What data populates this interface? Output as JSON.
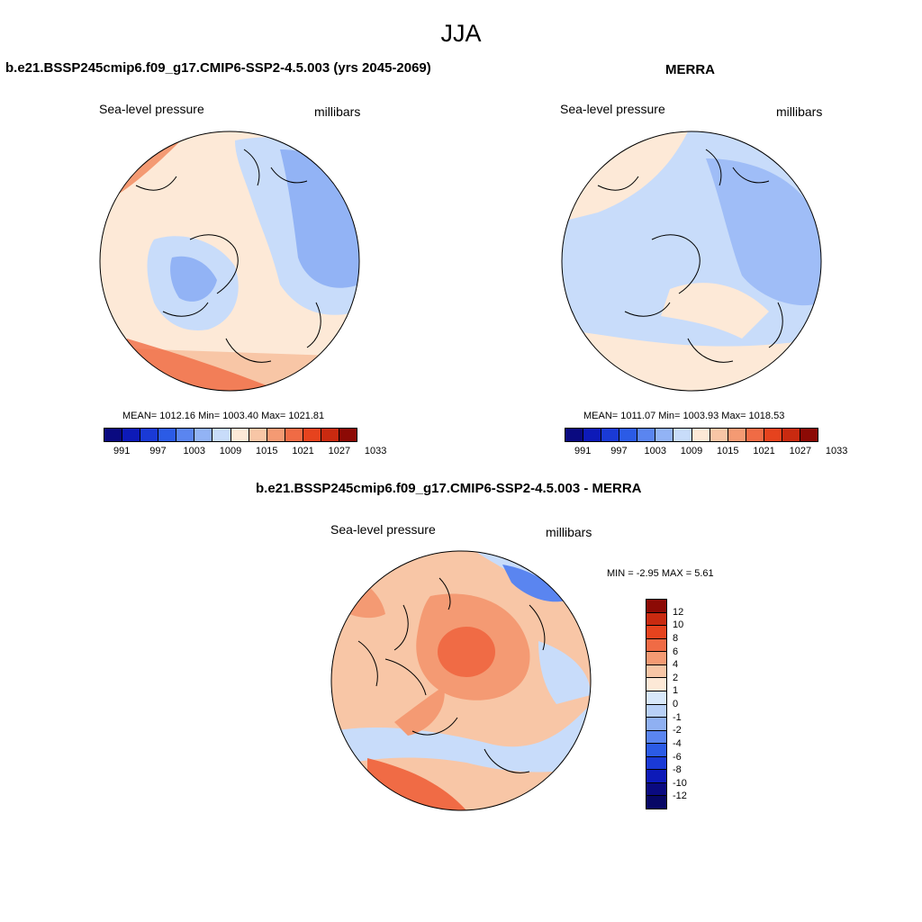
{
  "title": "JJA",
  "panels": {
    "model": {
      "title": "b.e21.BSSP245cmip6.f09_g17.CMIP6-SSP2-4.5.003 (yrs 2045-2069)",
      "variable": "Sea-level pressure",
      "units": "millibars",
      "stats": "MEAN= 1012.16   Min= 1003.40   Max= 1021.81"
    },
    "obs": {
      "title": "MERRA",
      "variable": "Sea-level pressure",
      "units": "millibars",
      "stats": "MEAN= 1011.07   Min= 1003.93   Max= 1018.53"
    },
    "diff": {
      "title": "b.e21.BSSP245cmip6.f09_g17.CMIP6-SSP2-4.5.003 - MERRA",
      "variable": "Sea-level pressure",
      "units": "millibars",
      "stats": "MIN =  -2.95 MAX =   5.61"
    }
  },
  "colorbar_abs": {
    "colors": [
      "#0a0a80",
      "#0d1ab8",
      "#1a3ad6",
      "#2b5be6",
      "#5a85f0",
      "#92b3f5",
      "#c8dcfa",
      "#fde9d7",
      "#f8c6a6",
      "#f49a73",
      "#f06b45",
      "#e6431e",
      "#c92a10",
      "#8c0a05"
    ],
    "labels": [
      "991",
      "997",
      "1003",
      "1009",
      "1015",
      "1021",
      "1027",
      "1033"
    ]
  },
  "colorbar_diff": {
    "colors": [
      "#8c0a05",
      "#c92a10",
      "#e6431e",
      "#f06b45",
      "#f49a73",
      "#f8c6a6",
      "#fde9d7",
      "#d8e8fa",
      "#b8d0f7",
      "#8fb0f2",
      "#5a85f0",
      "#2b5be6",
      "#1a3ad6",
      "#0d1ab8",
      "#0a0a80",
      "#070765"
    ],
    "labels": [
      "12",
      "10",
      "8",
      "6",
      "4",
      "2",
      "1",
      "0",
      "-1",
      "-2",
      "-4",
      "-6",
      "-8",
      "-10",
      "-12"
    ]
  }
}
